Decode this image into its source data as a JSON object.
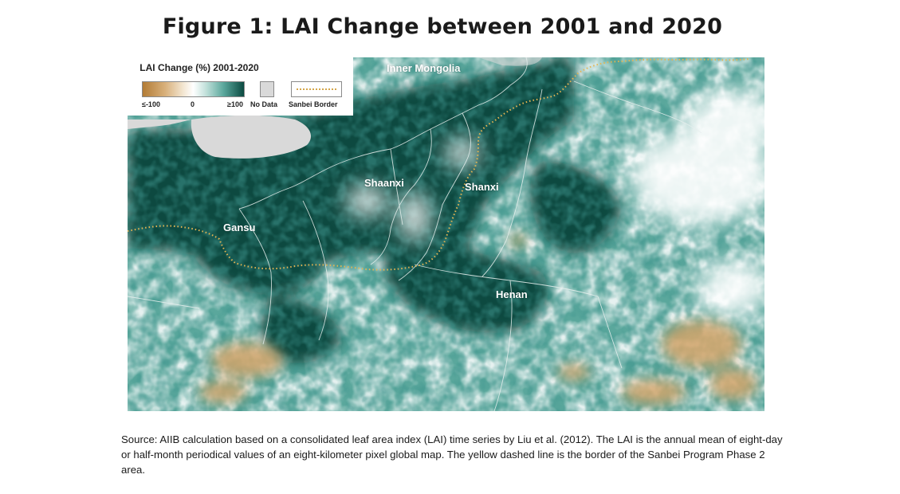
{
  "figure": {
    "title": "Figure 1: LAI Change between 2001 and 2020"
  },
  "legend": {
    "title": "LAI Change (%) 2001-2020",
    "scale_min_label": "≤-100",
    "scale_mid_label": "0",
    "scale_max_label": "≥100",
    "nodata_label": "No Data",
    "border_label": "Sanbei Border",
    "colors": {
      "decrease": "#b27b35",
      "neutral": "#ffffff",
      "increase": "#0b4a41",
      "nodata": "#d9d9d9",
      "border": "#d4a64a"
    }
  },
  "regions": [
    {
      "name": "Inner Mongolia"
    },
    {
      "name": "Shaanxi"
    },
    {
      "name": "Shanxi"
    },
    {
      "name": "Gansu"
    },
    {
      "name": "Henan"
    }
  ],
  "source_text": "Source: AIIB calculation based on a consolidated leaf area index (LAI) time series by Liu et al. (2012). The LAI is the annual mean of eight-day or half-month periodical values of an eight-kilometer pixel global map. The yellow dashed line is the border of the Sanbei Program Phase 2 area."
}
